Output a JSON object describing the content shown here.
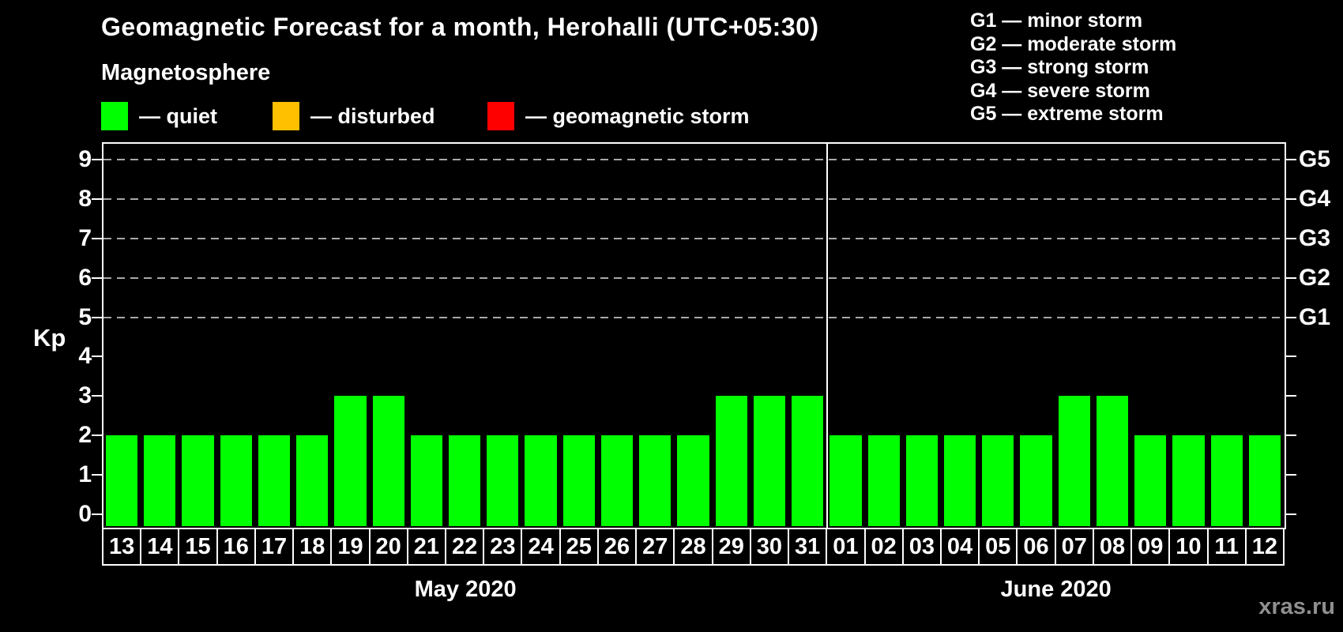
{
  "chart_data": {
    "type": "bar",
    "title": "Geomagnetic Forecast for a month, Herohalli (UTC+05:30)",
    "subtitle": "Magnetosphere",
    "ylabel": "Kp",
    "ylim": [
      0,
      9
    ],
    "yticks": [
      0,
      1,
      2,
      3,
      4,
      5,
      6,
      7,
      8,
      9
    ],
    "gridlines_at": [
      5,
      6,
      7,
      8,
      9
    ],
    "grid": "dashed horizontal at G-storm levels only",
    "legend_position": "top-left above plot",
    "bar_color": "#00ff00",
    "legend": {
      "items": [
        {
          "label": "— quiet",
          "color": "#00ff00"
        },
        {
          "label": "— disturbed",
          "color": "#ffc000"
        },
        {
          "label": "— geomagnetic storm",
          "color": "#ff0000"
        }
      ]
    },
    "g_scale": [
      "G1 — minor storm",
      "G2 — moderate storm",
      "G3 — strong storm",
      "G4 — severe storm",
      "G5 — extreme storm"
    ],
    "right_axis_labels": [
      {
        "kp": 5,
        "label": "G1"
      },
      {
        "kp": 6,
        "label": "G2"
      },
      {
        "kp": 7,
        "label": "G3"
      },
      {
        "kp": 8,
        "label": "G4"
      },
      {
        "kp": 9,
        "label": "G5"
      }
    ],
    "months": [
      {
        "name": "May 2020",
        "days": [
          "13",
          "14",
          "15",
          "16",
          "17",
          "18",
          "19",
          "20",
          "21",
          "22",
          "23",
          "24",
          "25",
          "26",
          "27",
          "28",
          "29",
          "30",
          "31"
        ],
        "values": [
          2,
          2,
          2,
          2,
          2,
          2,
          3,
          3,
          2,
          2,
          2,
          2,
          2,
          2,
          2,
          2,
          3,
          3,
          3
        ]
      },
      {
        "name": "June 2020",
        "days": [
          "01",
          "02",
          "03",
          "04",
          "05",
          "06",
          "07",
          "08",
          "09",
          "10",
          "11",
          "12"
        ],
        "values": [
          2,
          2,
          2,
          2,
          2,
          2,
          3,
          3,
          2,
          2,
          2,
          2
        ]
      }
    ],
    "watermark": "xras.ru"
  }
}
